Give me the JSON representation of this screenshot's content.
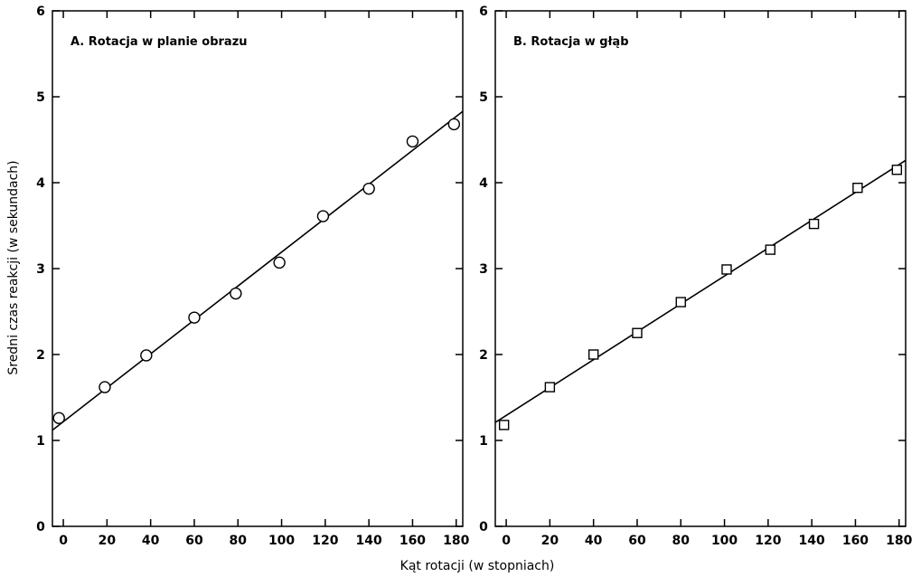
{
  "chart_data": [
    {
      "type": "scatter",
      "title": "A. Rotacja w planie obrazu",
      "marker": "circle",
      "xlim": [
        -5,
        183
      ],
      "ylim": [
        0,
        6
      ],
      "xticks": [
        0,
        20,
        40,
        60,
        80,
        100,
        120,
        140,
        160,
        180
      ],
      "xtick_labels": [
        "0",
        "20",
        "40",
        "60",
        "80",
        "100",
        "120",
        "140",
        "160",
        "180"
      ],
      "yticks": [
        0,
        1,
        2,
        3,
        4,
        5,
        6
      ],
      "ytick_labels": [
        "0",
        "1",
        "2",
        "3",
        "4",
        "5",
        "6"
      ],
      "grid": false,
      "series": [
        {
          "x": [
            -2,
            19,
            38,
            60,
            79,
            99,
            119,
            140,
            160,
            179
          ],
          "y": [
            1.26,
            1.62,
            1.99,
            2.43,
            2.71,
            3.07,
            3.61,
            3.93,
            4.48,
            4.68
          ]
        }
      ],
      "fit_line": {
        "x": [
          -5,
          183
        ],
        "y": [
          1.12,
          4.83
        ]
      }
    },
    {
      "type": "scatter",
      "title": "B. Rotacja w głąb",
      "marker": "square",
      "xlim": [
        -5,
        183
      ],
      "ylim": [
        0,
        6
      ],
      "xticks": [
        0,
        20,
        40,
        60,
        80,
        100,
        120,
        140,
        160,
        180
      ],
      "xtick_labels": [
        "0",
        "20",
        "40",
        "60",
        "80",
        "100",
        "120",
        "140",
        "160",
        "180"
      ],
      "yticks": [
        0,
        1,
        2,
        3,
        4,
        5,
        6
      ],
      "ytick_labels": [
        "0",
        "1",
        "2",
        "3",
        "4",
        "5",
        "6"
      ],
      "grid": false,
      "series": [
        {
          "x": [
            -1,
            20,
            40,
            60,
            80,
            101,
            121,
            141,
            161,
            179
          ],
          "y": [
            1.18,
            1.62,
            2.0,
            2.25,
            2.61,
            2.99,
            3.22,
            3.52,
            3.94,
            4.15
          ]
        }
      ],
      "fit_line": {
        "x": [
          -5,
          183
        ],
        "y": [
          1.21,
          4.26
        ]
      }
    }
  ],
  "ylabel": "Sredni czas reakcji (w sekundach)",
  "xlabel": "Kąt rotacji (w stopniach)",
  "colors": {
    "ink": "#000000",
    "background": "#ffffff"
  }
}
